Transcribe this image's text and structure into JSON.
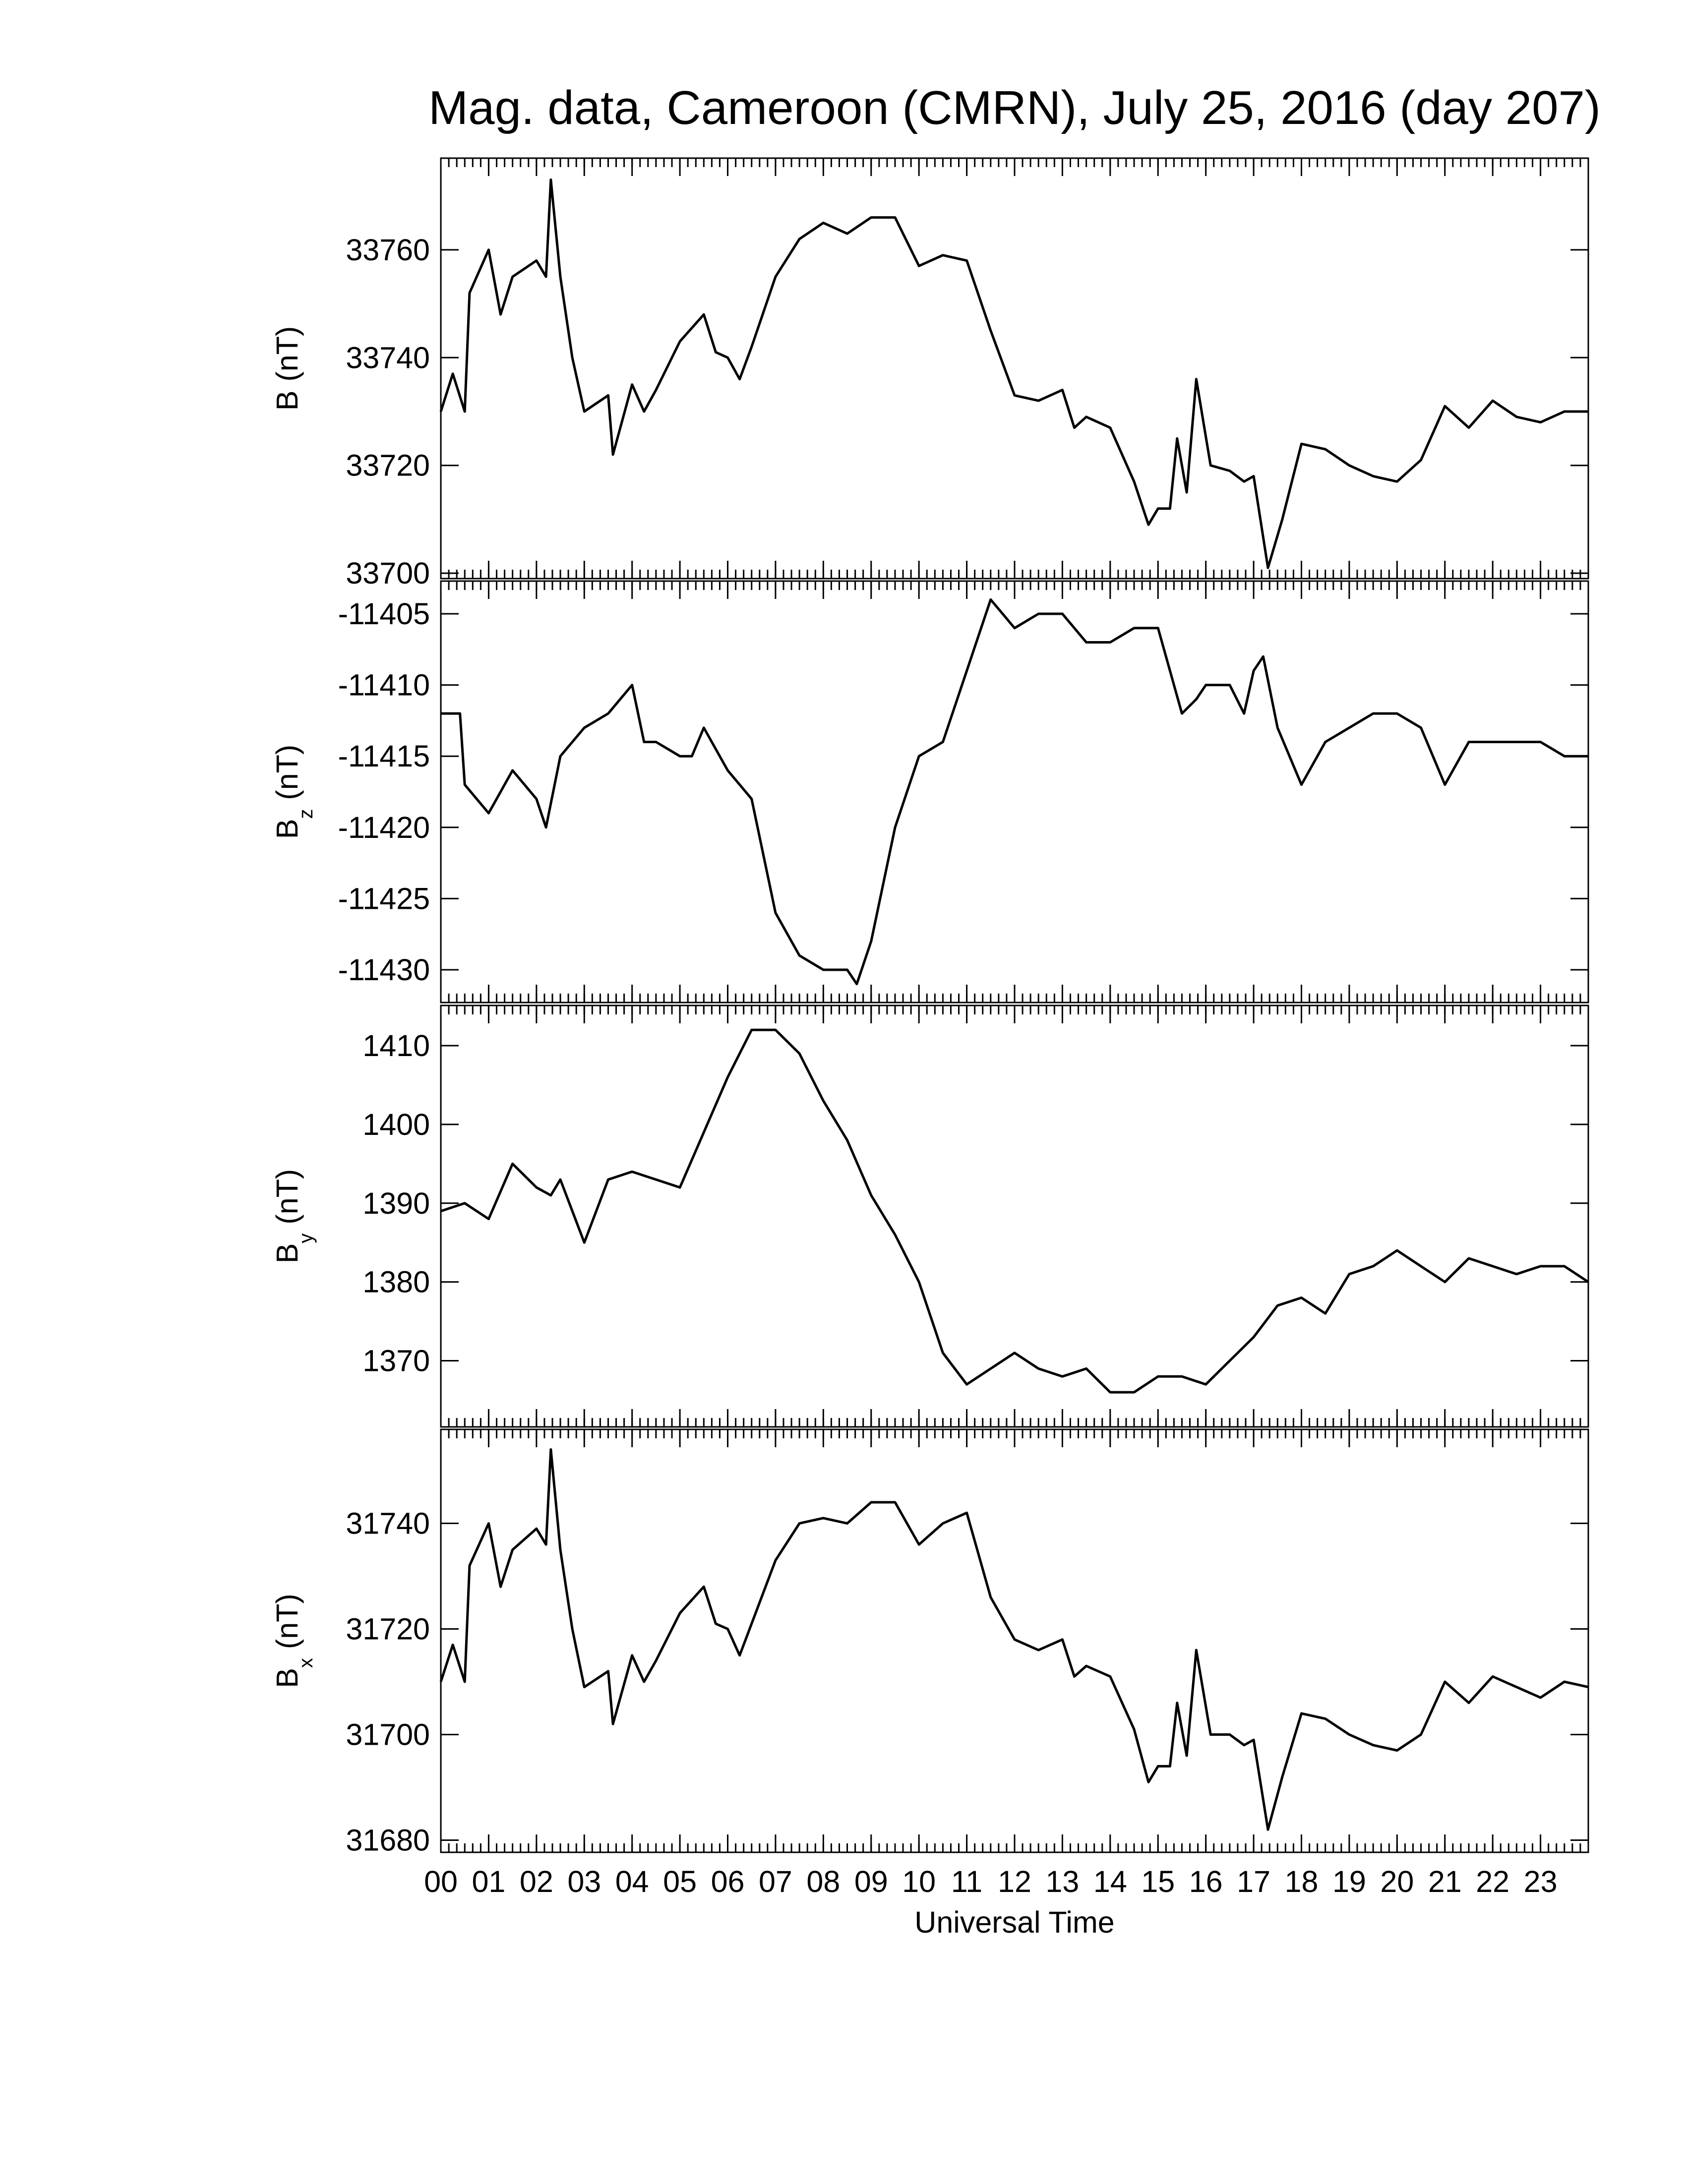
{
  "chart_data": [
    {
      "type": "line",
      "title": "Mag. data, Cameroon (CMRN), July 25, 2016 (day 207)",
      "y_label": {
        "base": "B",
        "unit": "(nT)"
      },
      "x": [
        0,
        0.25,
        0.5,
        0.6,
        1,
        1.25,
        1.5,
        2,
        2.2,
        2.3,
        2.5,
        2.75,
        3,
        3.5,
        3.6,
        4,
        4.25,
        4.5,
        5,
        5.5,
        5.75,
        6,
        6.25,
        6.5,
        7,
        7.5,
        8,
        8.5,
        9,
        9.5,
        10,
        10.5,
        11,
        11.5,
        12,
        12.5,
        13,
        13.25,
        13.5,
        14,
        14.5,
        14.8,
        15,
        15.25,
        15.4,
        15.6,
        15.8,
        16.1,
        16.5,
        16.8,
        17,
        17.3,
        17.6,
        18,
        18.5,
        19,
        19.5,
        20,
        20.5,
        21,
        21.5,
        22,
        22.5,
        23,
        23.5,
        24
      ],
      "values": [
        33730,
        33737,
        33730,
        33752,
        33760,
        33748,
        33755,
        33758,
        33755,
        33773,
        33755,
        33740,
        33730,
        33733,
        33722,
        33735,
        33730,
        33734,
        33743,
        33748,
        33741,
        33740,
        33736,
        33742,
        33755,
        33762,
        33765,
        33763,
        33766,
        33766,
        33757,
        33759,
        33758,
        33745,
        33733,
        33732,
        33734,
        33727,
        33729,
        33727,
        33717,
        33709,
        33712,
        33712,
        33725,
        33715,
        33736,
        33720,
        33719,
        33717,
        33718,
        33701,
        33710,
        33724,
        33723,
        33720,
        33718,
        33717,
        33721,
        33731,
        33727,
        33732,
        33729,
        33728,
        33730,
        33730
      ],
      "ylim": [
        33699,
        33777
      ],
      "yticks": [
        33700,
        33720,
        33740,
        33760
      ]
    },
    {
      "type": "line",
      "y_label": {
        "base": "B",
        "sub": "z",
        "unit": "(nT)"
      },
      "x": [
        0,
        0.4,
        0.5,
        1,
        1.5,
        2,
        2.2,
        2.5,
        3,
        3.5,
        4,
        4.25,
        4.5,
        5,
        5.25,
        5.5,
        6,
        6.5,
        7,
        7.5,
        8,
        8.5,
        8.7,
        9,
        9.5,
        10,
        10.5,
        11,
        11.5,
        12,
        12.5,
        13,
        13.5,
        14,
        14.5,
        15,
        15.5,
        15.8,
        16,
        16.5,
        16.8,
        17,
        17.2,
        17.5,
        18,
        18.5,
        19,
        19.5,
        20,
        20.5,
        21,
        21.5,
        22,
        22.5,
        23,
        23.5,
        24
      ],
      "values": [
        -11412,
        -11412,
        -11417,
        -11419,
        -11416,
        -11418,
        -11420,
        -11415,
        -11413,
        -11412,
        -11410,
        -11414,
        -11414,
        -11415,
        -11415,
        -11413,
        -11416,
        -11418,
        -11426,
        -11429,
        -11430,
        -11430,
        -11431,
        -11428,
        -11420,
        -11415,
        -11414,
        -11409,
        -11404,
        -11406,
        -11405,
        -11405,
        -11407,
        -11407,
        -11406,
        -11406,
        -11412,
        -11411,
        -11410,
        -11410,
        -11412,
        -11409,
        -11408,
        -11413,
        -11417,
        -11414,
        -11413,
        -11412,
        -11412,
        -11413,
        -11417,
        -11414,
        -11414,
        -11414,
        -11414,
        -11415,
        -11415
      ],
      "ylim": [
        -11432.3,
        -11402.7
      ],
      "yticks": [
        -11430,
        -11425,
        -11420,
        -11415,
        -11410,
        -11405
      ]
    },
    {
      "type": "line",
      "y_label": {
        "base": "B",
        "sub": "y",
        "unit": "(nT)"
      },
      "x": [
        0,
        0.5,
        1,
        1.5,
        2,
        2.3,
        2.5,
        3,
        3.5,
        4,
        4.5,
        5,
        5.5,
        6,
        6.5,
        7,
        7.5,
        8,
        8.5,
        9,
        9.5,
        10,
        10.5,
        11,
        11.5,
        12,
        12.5,
        13,
        13.5,
        14,
        14.5,
        15,
        15.5,
        16,
        16.5,
        17,
        17.5,
        18,
        18.5,
        19,
        19.5,
        20,
        20.5,
        21,
        21.5,
        22,
        22.5,
        23,
        23.5,
        24
      ],
      "values": [
        1389,
        1390,
        1388,
        1395,
        1392,
        1391,
        1393,
        1385,
        1393,
        1394,
        1393,
        1392,
        1399,
        1406,
        1412,
        1412,
        1409,
        1403,
        1398,
        1391,
        1386,
        1380,
        1371,
        1367,
        1369,
        1371,
        1369,
        1368,
        1369,
        1366,
        1366,
        1368,
        1368,
        1367,
        1370,
        1373,
        1377,
        1378,
        1376,
        1381,
        1382,
        1384,
        1382,
        1380,
        1383,
        1382,
        1381,
        1382,
        1382,
        1380
      ],
      "ylim": [
        1361.6,
        1415.1
      ],
      "yticks": [
        1370,
        1380,
        1390,
        1400,
        1410
      ]
    },
    {
      "type": "line",
      "y_label": {
        "base": "B",
        "sub": "x",
        "unit": "(nT)"
      },
      "x_label": "Universal Time",
      "x": [
        0,
        0.25,
        0.5,
        0.6,
        1,
        1.25,
        1.5,
        2,
        2.2,
        2.3,
        2.5,
        2.75,
        3,
        3.5,
        3.6,
        4,
        4.25,
        4.5,
        5,
        5.5,
        5.75,
        6,
        6.25,
        6.5,
        7,
        7.5,
        8,
        8.5,
        9,
        9.5,
        10,
        10.5,
        11,
        11.5,
        12,
        12.5,
        13,
        13.25,
        13.5,
        14,
        14.5,
        14.8,
        15,
        15.25,
        15.4,
        15.6,
        15.8,
        16.1,
        16.5,
        16.8,
        17,
        17.3,
        17.6,
        18,
        18.5,
        19,
        19.5,
        20,
        20.5,
        21,
        21.5,
        22,
        22.5,
        23,
        23.5,
        24
      ],
      "values": [
        31710,
        31717,
        31710,
        31732,
        31740,
        31728,
        31735,
        31739,
        31736,
        31754,
        31735,
        31720,
        31709,
        31712,
        31702,
        31715,
        31710,
        31714,
        31723,
        31728,
        31721,
        31720,
        31715,
        31721,
        31733,
        31740,
        31741,
        31740,
        31744,
        31744,
        31736,
        31740,
        31742,
        31726,
        31718,
        31716,
        31718,
        31711,
        31713,
        31711,
        31701,
        31691,
        31694,
        31694,
        31706,
        31696,
        31716,
        31700,
        31700,
        31698,
        31699,
        31682,
        31692,
        31704,
        31703,
        31700,
        31698,
        31697,
        31700,
        31710,
        31706,
        31711,
        31709,
        31707,
        31710,
        31709
      ],
      "ylim": [
        31677.7,
        31757.8
      ],
      "yticks": [
        31680,
        31700,
        31720,
        31740
      ],
      "xlim": [
        0,
        24
      ],
      "xticks": [
        {
          "value": 0,
          "label": "00"
        },
        {
          "value": 1,
          "label": "01"
        },
        {
          "value": 2,
          "label": "02"
        },
        {
          "value": 3,
          "label": "03"
        },
        {
          "value": 4,
          "label": "04"
        },
        {
          "value": 5,
          "label": "05"
        },
        {
          "value": 6,
          "label": "06"
        },
        {
          "value": 7,
          "label": "07"
        },
        {
          "value": 8,
          "label": "08"
        },
        {
          "value": 9,
          "label": "09"
        },
        {
          "value": 10,
          "label": "10"
        },
        {
          "value": 11,
          "label": "11"
        },
        {
          "value": 12,
          "label": "12"
        },
        {
          "value": 13,
          "label": "13"
        },
        {
          "value": 14,
          "label": "14"
        },
        {
          "value": 15,
          "label": "15"
        },
        {
          "value": 16,
          "label": "16"
        },
        {
          "value": 17,
          "label": "17"
        },
        {
          "value": 18,
          "label": "18"
        },
        {
          "value": 19,
          "label": "19"
        },
        {
          "value": 20,
          "label": "20"
        },
        {
          "value": 21,
          "label": "21"
        },
        {
          "value": 22,
          "label": "22"
        },
        {
          "value": 23,
          "label": "23"
        }
      ]
    }
  ]
}
